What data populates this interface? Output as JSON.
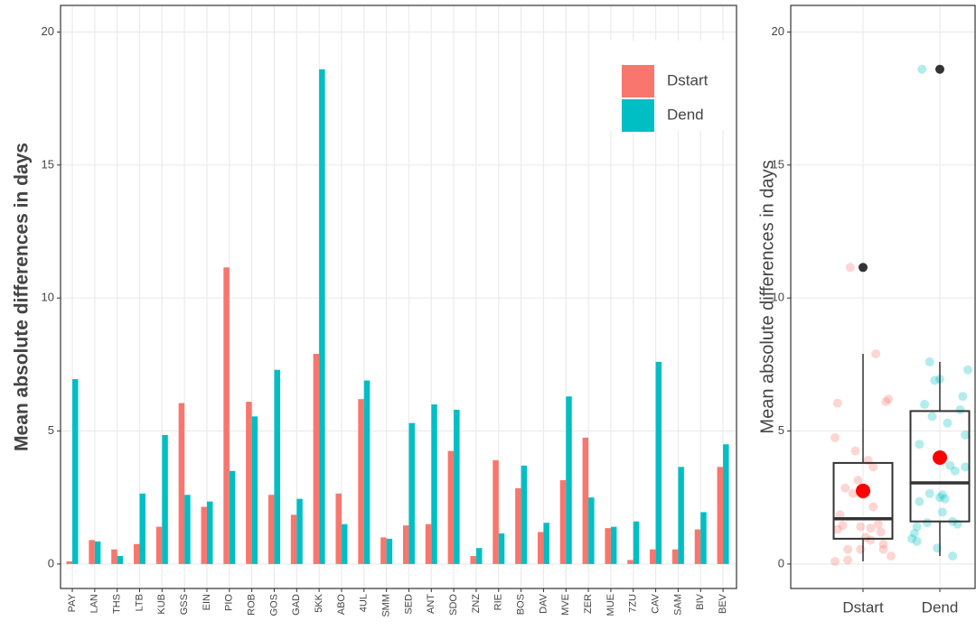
{
  "chart_data": [
    {
      "type": "bar",
      "ylabel": "Mean absolute differences in days",
      "categories": [
        "PAY",
        "LAN",
        "THS",
        "LTB",
        "KUB",
        "GSS",
        "EIN",
        "PIO",
        "ROB",
        "GOS",
        "GAD",
        "5KK",
        "ABO",
        "4UL",
        "SMM",
        "SED",
        "ANT",
        "SDO",
        "ZNZ",
        "RIE",
        "BOS",
        "DAV",
        "MVE",
        "ZER",
        "MUE",
        "7ZU",
        "CAV",
        "SAM",
        "BIV",
        "BEV"
      ],
      "series": [
        {
          "name": "Dstart",
          "color": "#F8766D",
          "values": [
            0.1,
            0.9,
            0.55,
            0.75,
            1.4,
            6.05,
            2.15,
            11.15,
            6.1,
            2.6,
            1.85,
            7.9,
            2.65,
            6.2,
            1.0,
            1.45,
            1.5,
            4.25,
            0.3,
            3.9,
            2.85,
            1.2,
            3.15,
            4.75,
            1.35,
            0.15,
            0.55,
            0.55,
            1.3,
            3.65
          ]
        },
        {
          "name": "Dend",
          "color": "#00BFC4",
          "values": [
            6.95,
            0.85,
            0.3,
            2.65,
            4.85,
            2.6,
            2.35,
            3.5,
            5.55,
            7.3,
            2.45,
            18.6,
            1.5,
            6.9,
            0.95,
            5.3,
            6.0,
            5.8,
            0.6,
            1.15,
            3.7,
            1.55,
            6.3,
            2.5,
            1.4,
            1.6,
            7.6,
            3.65,
            1.95,
            4.5
          ]
        }
      ],
      "ylim": [
        -0.92,
        21.0
      ],
      "yticks": [
        0,
        5,
        10,
        15,
        20
      ],
      "grid": true,
      "legend": "top-right"
    },
    {
      "type": "box",
      "ylabel": "Mean absolute differences in days",
      "categories": [
        "Dstart",
        "Dend"
      ],
      "boxes": [
        {
          "min": 0.1,
          "q1": 0.95,
          "median": 1.7,
          "q3": 3.8,
          "max": 7.9,
          "mean": 2.75,
          "outliers": [
            11.15
          ]
        },
        {
          "min": 0.3,
          "q1": 1.6,
          "median": 3.05,
          "q3": 5.75,
          "max": 7.6,
          "mean": 4.0,
          "outliers": [
            18.6
          ]
        }
      ],
      "point_colors": [
        "#F8766D",
        "#00BFC4"
      ],
      "mean_color": "#FF0000",
      "outlier_color": "#333333",
      "ylim": [
        -0.92,
        21.0
      ],
      "yticks": [
        0,
        5,
        10,
        15,
        20
      ],
      "grid": true
    }
  ]
}
